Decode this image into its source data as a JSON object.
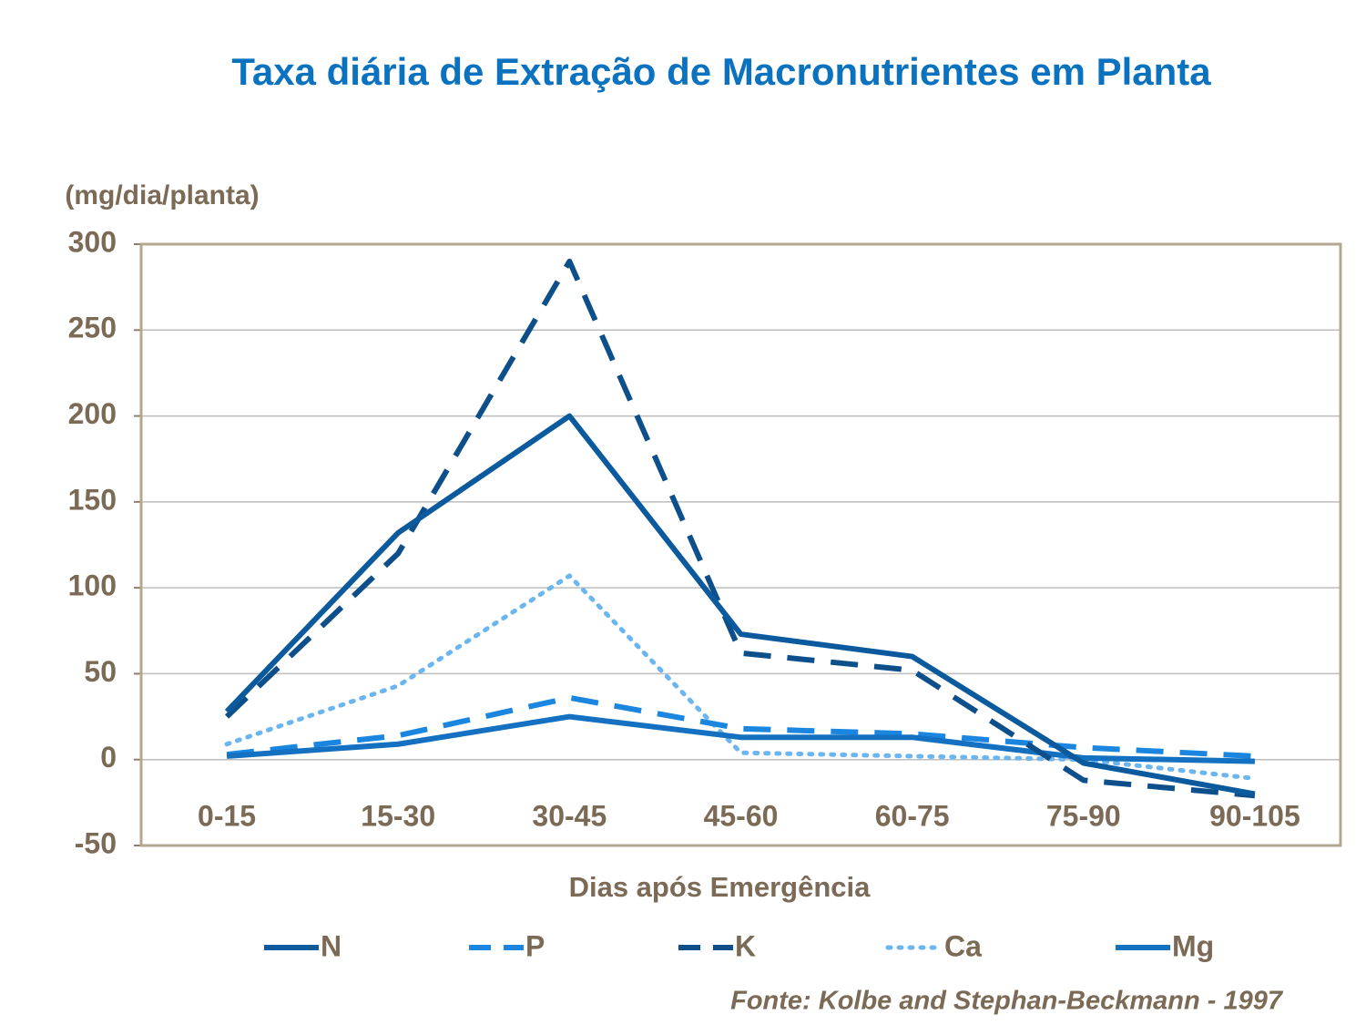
{
  "chart_data": {
    "type": "line",
    "title": "Taxa diária de Extração de Macronutrientes em Planta",
    "y_label": "(mg/dia/planta)",
    "x_label": "Dias após Emergência",
    "source": "Fonte: Kolbe and Stephan-Beckmann  - 1997",
    "categories": [
      "0-15",
      "15-30",
      "30-45",
      "45-60",
      "60-75",
      "75-90",
      "90-105"
    ],
    "series": [
      {
        "name": "N",
        "color": "#0b5a9e",
        "dash": "solid",
        "values": [
          28,
          132,
          200,
          73,
          60,
          -2,
          -20
        ]
      },
      {
        "name": "P",
        "color": "#1a86e0",
        "dash": "dashed",
        "values": [
          3,
          14,
          36,
          18,
          15,
          7,
          2
        ]
      },
      {
        "name": "K",
        "color": "#0d4f8b",
        "dash": "dashed",
        "values": [
          25,
          120,
          290,
          62,
          52,
          -12,
          -21
        ]
      },
      {
        "name": "Ca",
        "color": "#6cb6f0",
        "dash": "dotted",
        "values": [
          9,
          43,
          107,
          4,
          2,
          0,
          -11
        ]
      },
      {
        "name": "Mg",
        "color": "#1470c0",
        "dash": "solid",
        "values": [
          2,
          9,
          25,
          13,
          13,
          1,
          -1
        ]
      }
    ],
    "ylim": [
      -50,
      300
    ],
    "yticks": [
      -50,
      0,
      50,
      100,
      150,
      200,
      250,
      300
    ],
    "grid": true,
    "legend": "bottom"
  }
}
